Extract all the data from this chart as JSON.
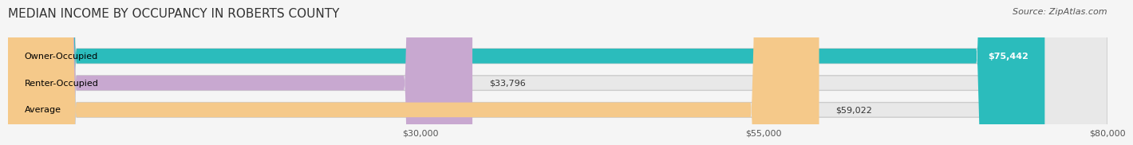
{
  "title": "MEDIAN INCOME BY OCCUPANCY IN ROBERTS COUNTY",
  "source": "Source: ZipAtlas.com",
  "categories": [
    "Owner-Occupied",
    "Renter-Occupied",
    "Average"
  ],
  "values": [
    75442,
    33796,
    59022
  ],
  "labels": [
    "$75,442",
    "$33,796",
    "$59,022"
  ],
  "bar_colors": [
    "#2bbcbc",
    "#c8a8d0",
    "#f5c98a"
  ],
  "xlim": [
    0,
    80000
  ],
  "xticks": [
    0,
    30000,
    55000,
    80000
  ],
  "xticklabels": [
    "",
    "$30,000",
    "$55,000",
    "$80,000"
  ],
  "background_color": "#f5f5f5",
  "bar_bg_color": "#e8e8e8",
  "title_fontsize": 11,
  "source_fontsize": 8,
  "label_fontsize": 8,
  "tick_fontsize": 8
}
